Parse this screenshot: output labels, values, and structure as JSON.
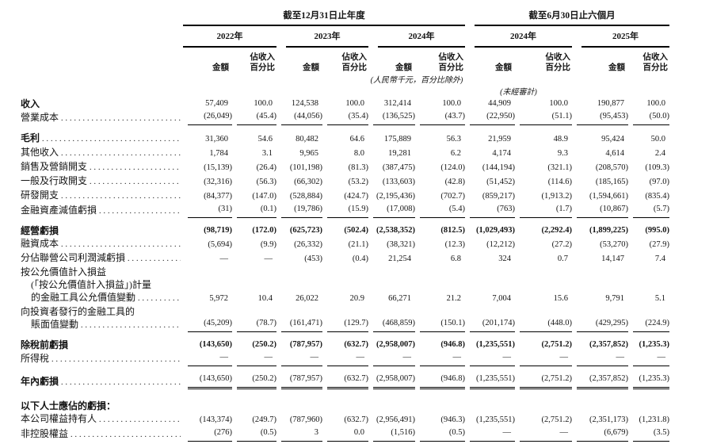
{
  "table": {
    "leader_dots": "........................................................................",
    "period_groups": [
      {
        "title": "截至12月31日止年度",
        "years": [
          "2022年",
          "2023年",
          "2024年"
        ]
      },
      {
        "title": "截至6月30日止六個月",
        "years": [
          "2024年",
          "2025年"
        ]
      }
    ],
    "col_headers": {
      "amount": "金額",
      "pct_line1": "佔收入",
      "pct_line2": "百分比"
    },
    "notes": {
      "units": "(人民幣千元，百分比除外)",
      "unaudited": "(未經審計)"
    },
    "rows": [
      {
        "lines": [
          "收入"
        ],
        "indents": [
          0
        ],
        "bold": true,
        "dots": false,
        "values": [
          "57,409",
          "100.0",
          "124,538",
          "100.0",
          "312,414",
          "100.0",
          "44,909",
          "100.0",
          "190,877",
          "100.0"
        ]
      },
      {
        "lines": [
          "營業成本"
        ],
        "indents": [
          0
        ],
        "dots": true,
        "rule": "single",
        "values": [
          "(26,049)",
          "(45.4)",
          "(44,056)",
          "(35.4)",
          "(136,525)",
          "(43.7)",
          "(22,950)",
          "(51.1)",
          "(95,453)",
          "(50.0)"
        ]
      },
      {
        "lines": [
          "毛利"
        ],
        "indents": [
          0
        ],
        "bold": true,
        "dots": true,
        "space": "sp8",
        "values": [
          "31,360",
          "54.6",
          "80,482",
          "64.6",
          "175,889",
          "56.3",
          "21,959",
          "48.9",
          "95,424",
          "50.0"
        ]
      },
      {
        "lines": [
          "其他收入"
        ],
        "indents": [
          0
        ],
        "dots": true,
        "values": [
          "1,784",
          "3.1",
          "9,965",
          "8.0",
          "19,281",
          "6.2",
          "4,174",
          "9.3",
          "4,614",
          "2.4"
        ]
      },
      {
        "lines": [
          "銷售及營銷開支"
        ],
        "indents": [
          0
        ],
        "dots": true,
        "values": [
          "(15,139)",
          "(26.4)",
          "(101,198)",
          "(81.3)",
          "(387,475)",
          "(124.0)",
          "(144,194)",
          "(321.1)",
          "(208,570)",
          "(109.3)"
        ]
      },
      {
        "lines": [
          "一般及行政開支"
        ],
        "indents": [
          0
        ],
        "dots": true,
        "values": [
          "(32,316)",
          "(56.3)",
          "(66,302)",
          "(53.2)",
          "(133,603)",
          "(42.8)",
          "(51,452)",
          "(114.6)",
          "(185,165)",
          "(97.0)"
        ]
      },
      {
        "lines": [
          "研發開支"
        ],
        "indents": [
          0
        ],
        "dots": true,
        "values": [
          "(84,377)",
          "(147.0)",
          "(528,884)",
          "(424.7)",
          "(2,195,436)",
          "(702.7)",
          "(859,217)",
          "(1,913.2)",
          "(1,594,661)",
          "(835.4)"
        ]
      },
      {
        "lines": [
          "金融資產減值虧損"
        ],
        "indents": [
          0
        ],
        "dots": true,
        "rule": "single",
        "values": [
          "(31)",
          "(0.1)",
          "(19,786)",
          "(15.9)",
          "(17,008)",
          "(5.4)",
          "(763)",
          "(1.7)",
          "(10,867)",
          "(5.7)"
        ]
      },
      {
        "lines": [
          "經營虧損"
        ],
        "indents": [
          0
        ],
        "bold": true,
        "bold_values": true,
        "space": "sp8",
        "values": [
          "(98,719)",
          "(172.0)",
          "(625,723)",
          "(502.4)",
          "(2,538,352)",
          "(812.5)",
          "(1,029,493)",
          "(2,292.4)",
          "(1,899,225)",
          "(995.0)"
        ]
      },
      {
        "lines": [
          "融資成本"
        ],
        "indents": [
          0
        ],
        "dots": true,
        "values": [
          "(5,694)",
          "(9.9)",
          "(26,332)",
          "(21.1)",
          "(38,321)",
          "(12.3)",
          "(12,212)",
          "(27.2)",
          "(53,270)",
          "(27.9)"
        ]
      },
      {
        "lines": [
          "分佔聯營公司利潤減虧損"
        ],
        "indents": [
          0
        ],
        "dots": true,
        "values": [
          "—",
          "—",
          "(453)",
          "(0.4)",
          "21,254",
          "6.8",
          "324",
          "0.7",
          "14,147",
          "7.4"
        ]
      },
      {
        "lines": [
          "按公允價值計入損益",
          "(「按公允價值計入損益」)計量",
          "的金融工具公允價值變動"
        ],
        "indents": [
          0,
          1,
          1
        ],
        "dots": true,
        "values": [
          "5,972",
          "10.4",
          "26,022",
          "20.9",
          "66,271",
          "21.2",
          "7,004",
          "15.6",
          "9,791",
          "5.1"
        ]
      },
      {
        "lines": [
          "向投資者發行的金融工具的",
          "賬面值變動"
        ],
        "indents": [
          0,
          1
        ],
        "dots": true,
        "rule": "single",
        "values": [
          "(45,209)",
          "(78.7)",
          "(161,471)",
          "(129.7)",
          "(468,859)",
          "(150.1)",
          "(201,174)",
          "(448.0)",
          "(429,295)",
          "(224.9)"
        ]
      },
      {
        "lines": [
          "除稅前虧損"
        ],
        "indents": [
          0
        ],
        "bold": true,
        "bold_values": true,
        "space": "sp8",
        "values": [
          "(143,650)",
          "(250.2)",
          "(787,957)",
          "(632.7)",
          "(2,958,007)",
          "(946.8)",
          "(1,235,551)",
          "(2,751.2)",
          "(2,357,852)",
          "(1,235.3)"
        ]
      },
      {
        "lines": [
          "所得稅"
        ],
        "indents": [
          0
        ],
        "dots": true,
        "rule": "single",
        "values": [
          "—",
          "—",
          "—",
          "—",
          "—",
          "—",
          "—",
          "—",
          "—",
          "—"
        ]
      },
      {
        "lines": [
          "年內虧損"
        ],
        "indents": [
          0
        ],
        "bold": true,
        "dots": true,
        "rule": "double",
        "space": "sp8",
        "values": [
          "(143,650)",
          "(250.2)",
          "(787,957)",
          "(632.7)",
          "(2,958,007)",
          "(946.8)",
          "(1,235,551)",
          "(2,751.2)",
          "(2,357,852)",
          "(1,235.3)"
        ]
      },
      {
        "lines": [
          "以下人士應佔的虧損："
        ],
        "indents": [
          0
        ],
        "bold": true,
        "space": "sp13",
        "values": null
      },
      {
        "lines": [
          "本公司權益持有人"
        ],
        "indents": [
          0
        ],
        "dots": true,
        "values": [
          "(143,374)",
          "(249.7)",
          "(787,960)",
          "(632.7)",
          "(2,956,491)",
          "(946.3)",
          "(1,235,551)",
          "(2,751.2)",
          "(2,351,173)",
          "(1,231.8)"
        ]
      },
      {
        "lines": [
          "非控股權益"
        ],
        "indents": [
          0
        ],
        "dots": true,
        "rule": "single",
        "values": [
          "(276)",
          "(0.5)",
          "3",
          "0.0",
          "(1,516)",
          "(0.5)",
          "—",
          "—",
          "(6,679)",
          "(3.5)"
        ]
      }
    ]
  }
}
